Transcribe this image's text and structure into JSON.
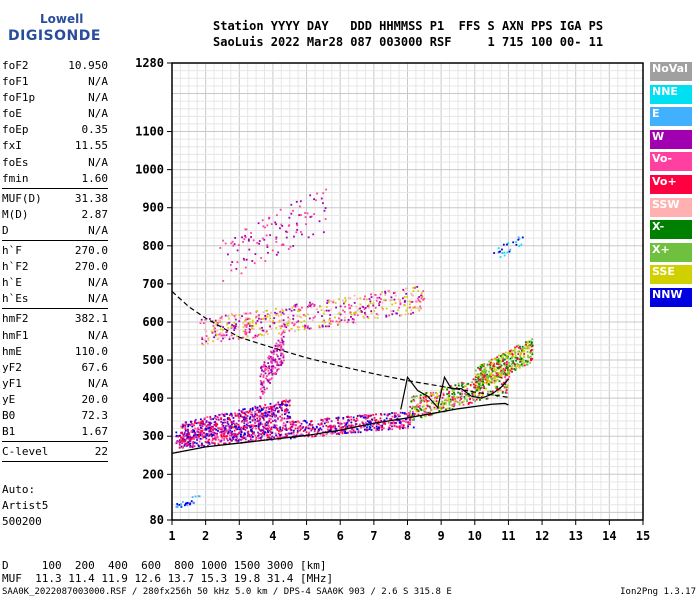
{
  "logo": {
    "line1": "Lowell",
    "line2": "DIGISONDE"
  },
  "header": {
    "labels": "Station YYYY DAY   DDD HHMMSS P1  FFS S AXN PPS IGA PS",
    "values": "SaoLuis 2022 Mar28 087 003000 RSF     1 715 100 00- 11"
  },
  "params": [
    {
      "name": "foF2",
      "value": "10.950"
    },
    {
      "name": "foF1",
      "value": "N/A"
    },
    {
      "name": "foF1p",
      "value": "N/A"
    },
    {
      "name": "foE",
      "value": "N/A"
    },
    {
      "name": "foEp",
      "value": "0.35"
    },
    {
      "name": "fxI",
      "value": "11.55"
    },
    {
      "name": "foEs",
      "value": "N/A"
    },
    {
      "name": "fmin",
      "value": "1.60"
    },
    {
      "sep": true
    },
    {
      "name": "MUF(D)",
      "value": "31.38"
    },
    {
      "name": "M(D)",
      "value": "2.87"
    },
    {
      "name": "D",
      "value": "N/A"
    },
    {
      "sep": true
    },
    {
      "name": "h`F",
      "value": "270.0"
    },
    {
      "name": "h`F2",
      "value": "270.0"
    },
    {
      "name": "h`E",
      "value": "N/A"
    },
    {
      "name": "h`Es",
      "value": "N/A"
    },
    {
      "sep": true
    },
    {
      "name": "hmF2",
      "value": "382.1"
    },
    {
      "name": "hmF1",
      "value": "N/A"
    },
    {
      "name": "hmE",
      "value": "110.0"
    },
    {
      "name": "yF2",
      "value": "67.6"
    },
    {
      "name": "yF1",
      "value": "N/A"
    },
    {
      "name": "yE",
      "value": "20.0"
    },
    {
      "name": "B0",
      "value": "72.3"
    },
    {
      "name": "B1",
      "value": "1.67"
    },
    {
      "sep": true
    },
    {
      "name": "C-level",
      "value": "22"
    },
    {
      "sep": true
    }
  ],
  "auto": {
    "line1": "Auto:",
    "line2": "Artist5",
    "line3": "500200"
  },
  "legend": [
    {
      "label": "NoVal",
      "color": "#a0a0a0"
    },
    {
      "label": "NNE",
      "color": "#00e0f0"
    },
    {
      "label": "E",
      "color": "#40b0ff"
    },
    {
      "label": "W",
      "color": "#a000b0"
    },
    {
      "label": "Vo-",
      "color": "#ff40a0"
    },
    {
      "label": "Vo+",
      "color": "#ff0040"
    },
    {
      "label": "SSW",
      "color": "#ffb0b0"
    },
    {
      "label": "X-",
      "color": "#008000"
    },
    {
      "label": "X+",
      "color": "#70c040"
    },
    {
      "label": "SSE",
      "color": "#d0d000"
    },
    {
      "label": "NNW",
      "color": "#0000e0"
    }
  ],
  "muf_table": {
    "d_row": "D     100  200  400  600  800 1000 1500 3000 [km]",
    "muf_row": "MUF  11.3 11.4 11.9 12.6 13.7 15.3 19.8 31.4 [MHz]"
  },
  "footer": "SAA0K_2022087003000.RSF / 280fx256h 50 kHz 5.0 km / DPS-4 SAA0K 903 / 2.6 S 315.8 E",
  "version": "Ion2Png 1.3.17",
  "chart_data": {
    "type": "scatter",
    "xlim": [
      1,
      15
    ],
    "x_ticks": [
      1,
      2,
      3,
      4,
      5,
      6,
      7,
      8,
      9,
      10,
      11,
      12,
      13,
      14,
      15
    ],
    "ylim": [
      80,
      1280
    ],
    "y_ticks": [
      80,
      200,
      300,
      400,
      500,
      600,
      700,
      800,
      900,
      1000,
      1100,
      1280
    ],
    "grid": true,
    "clusters": [
      {
        "name": "F-trace-lower",
        "x": [
          1.1,
          8.2
        ],
        "y": [
          270,
          370
        ],
        "count": 900,
        "colors": [
          "#ff0040",
          "#ff40a0",
          "#a000b0",
          "#0000e0"
        ]
      },
      {
        "name": "F-trace-mid",
        "x": [
          1.2,
          4.5
        ],
        "y": [
          285,
          400
        ],
        "count": 500,
        "colors": [
          "#a000b0",
          "#0000e0",
          "#ff0040",
          "#ff40a0"
        ]
      },
      {
        "name": "F-trace-high",
        "x": [
          8.0,
          11.0
        ],
        "y": [
          340,
          480
        ],
        "count": 420,
        "colors": [
          "#ff0040",
          "#ff40a0",
          "#70c040",
          "#008000",
          "#d0d000"
        ]
      },
      {
        "name": "F-trace-cusp",
        "x": [
          10.0,
          11.7
        ],
        "y": [
          420,
          560
        ],
        "count": 380,
        "colors": [
          "#d0d000",
          "#70c040",
          "#008000",
          "#ff0040"
        ]
      },
      {
        "name": "multi-hop",
        "x": [
          1.8,
          8.5
        ],
        "y": [
          540,
          700
        ],
        "count": 550,
        "colors": [
          "#a000b0",
          "#ff40a0",
          "#ffb0b0",
          "#d0d000"
        ]
      },
      {
        "name": "upper-echo",
        "x": [
          2.4,
          5.6
        ],
        "y": [
          700,
          960
        ],
        "count": 120,
        "colors": [
          "#a000b0",
          "#ff40a0"
        ]
      },
      {
        "name": "right-echo",
        "x": [
          10.5,
          11.4
        ],
        "y": [
          760,
          830
        ],
        "count": 25,
        "colors": [
          "#00e0f0",
          "#40b0ff",
          "#0000e0"
        ]
      },
      {
        "name": "low-echo",
        "x": [
          1.1,
          1.8
        ],
        "y": [
          110,
          150
        ],
        "count": 25,
        "colors": [
          "#0000e0",
          "#40b0ff"
        ]
      },
      {
        "name": "spread-column",
        "x": [
          3.6,
          4.3
        ],
        "y": [
          400,
          580
        ],
        "count": 160,
        "colors": [
          "#a000b0",
          "#ff40a0"
        ]
      }
    ],
    "profile_curve": {
      "x": [
        1.0,
        2.0,
        3.0,
        4.0,
        5.0,
        6.0,
        7.0,
        8.0,
        8.5,
        9.0,
        9.5,
        10.0,
        10.5,
        10.9,
        11.0
      ],
      "y": [
        255,
        272,
        282,
        292,
        302,
        316,
        334,
        348,
        356,
        364,
        372,
        378,
        384,
        386,
        382
      ]
    },
    "dashed_curve": {
      "x": [
        1.0,
        1.5,
        2.0,
        2.5,
        3.0,
        4.0,
        5.0,
        6.0,
        7.0,
        8.0,
        9.0,
        10.0,
        11.0
      ],
      "y": [
        680,
        640,
        610,
        585,
        560,
        532,
        506,
        484,
        464,
        446,
        431,
        416,
        402
      ]
    },
    "trace_line": {
      "x": [
        7.8,
        8.0,
        8.3,
        8.6,
        8.9,
        9.1,
        9.3,
        9.6,
        9.9,
        10.2,
        10.5,
        10.8,
        11.0
      ],
      "y": [
        370,
        455,
        420,
        405,
        375,
        455,
        425,
        425,
        405,
        400,
        410,
        430,
        450
      ]
    }
  }
}
